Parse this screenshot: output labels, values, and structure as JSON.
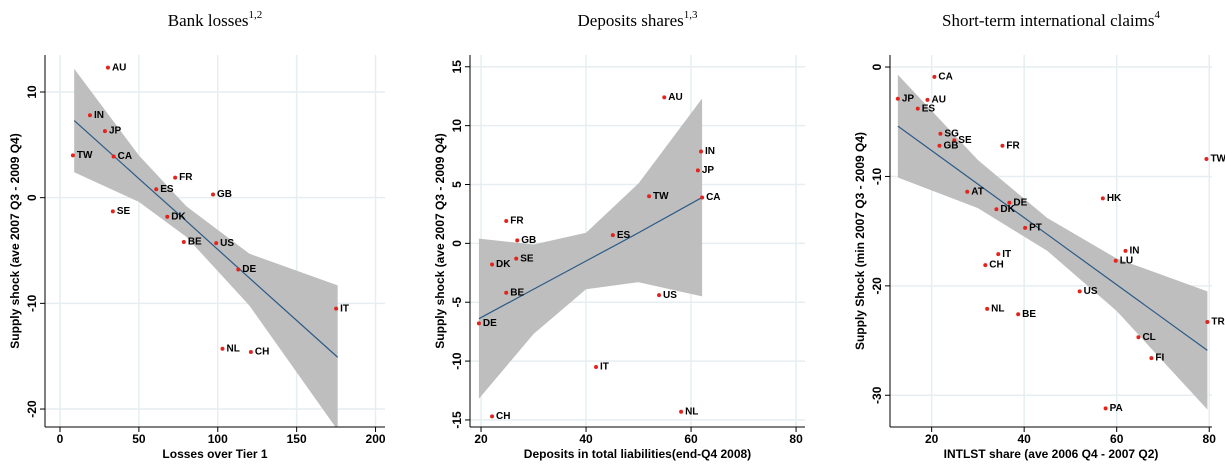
{
  "chart_data": [
    {
      "type": "scatter",
      "title": "Bank losses",
      "title_superscript": "1,2",
      "x_label": "Losses over Tier 1",
      "y_label": "Supply shock (ave 2007 Q3 - 2009 Q4)",
      "point_color": "#e3231c",
      "line_color": "#2c5a86",
      "band_color": "#bebebe",
      "grid": true,
      "xlim": [
        -9.5,
        206
      ],
      "ylim": [
        -21.7,
        13.5
      ],
      "xticks": [
        0,
        50,
        100,
        150,
        200
      ],
      "yticks": [
        -20,
        -10,
        0,
        10
      ],
      "labels": [
        "AU",
        "IN",
        "JP",
        "TW",
        "CA",
        "FR",
        "ES",
        "GB",
        "SE",
        "DK",
        "BE",
        "US",
        "DE",
        "IT",
        "NL",
        "CH"
      ],
      "x": [
        30.4,
        19,
        28.5,
        8.2,
        34,
        73,
        61,
        97,
        33.5,
        68,
        78.5,
        99,
        113,
        175,
        103,
        121
      ],
      "values": [
        12.3,
        7.8,
        6.3,
        4.0,
        3.9,
        1.9,
        0.8,
        0.3,
        -1.3,
        -1.8,
        -4.2,
        -4.3,
        -6.8,
        -10.5,
        -14.3,
        -14.6
      ],
      "fit": {
        "x": [
          9,
          50,
          80,
          120,
          176
        ],
        "values": [
          7.3,
          1.8,
          -2.2,
          -7.6,
          -15.1
        ],
        "upper": [
          12.2,
          4.0,
          -0.8,
          -5.3,
          -8.3
        ],
        "lower": [
          2.4,
          -0.4,
          -3.7,
          -10.2,
          -22.0
        ]
      }
    },
    {
      "type": "scatter",
      "title": "Deposits shares",
      "title_superscript": "1,3",
      "x_label": "Deposits in total liabilities(end-Q4 2008)",
      "y_label": "Supply shock (ave 2007 Q3 - 2009 Q4)",
      "point_color": "#e3231c",
      "line_color": "#2c5a86",
      "band_color": "#bebebe",
      "grid": true,
      "xlim": [
        17.9,
        81.7
      ],
      "ylim": [
        -15.6,
        16
      ],
      "xticks": [
        20,
        40,
        60,
        80
      ],
      "yticks": [
        -15,
        -10,
        -5,
        0,
        5,
        10,
        15
      ],
      "labels": [
        "AU",
        "IN",
        "JP",
        "CA",
        "TW",
        "FR",
        "GB",
        "ES",
        "SE",
        "DK",
        "BE",
        "US",
        "DE",
        "IT",
        "CH",
        "NL"
      ],
      "x": [
        54.9,
        61.9,
        61.3,
        62.1,
        52,
        24.8,
        26.9,
        45.1,
        26.7,
        22.1,
        24.8,
        53.9,
        19.6,
        41.9,
        22.1,
        58.1
      ],
      "values": [
        12.4,
        7.8,
        6.2,
        3.9,
        4.0,
        1.9,
        0.25,
        0.7,
        -1.3,
        -1.8,
        -4.2,
        -4.4,
        -6.8,
        -10.5,
        -14.7,
        -14.3
      ],
      "fit": {
        "x": [
          19.6,
          30,
          40,
          50,
          62.1
        ],
        "values": [
          -6.4,
          -3.9,
          -1.5,
          0.9,
          3.9
        ],
        "upper": [
          0.4,
          -0.1,
          0.9,
          5.1,
          12.3
        ],
        "lower": [
          -13.2,
          -7.7,
          -3.9,
          -3.3,
          -4.5
        ]
      }
    },
    {
      "type": "scatter",
      "title": "Short-term international claims",
      "title_superscript": "4",
      "x_label": "INTLST share (ave 2006 Q4 - 2007 Q2)",
      "y_label": "Supply Shock (min 2007 Q3 - 2009 Q4)",
      "point_color": "#e3231c",
      "line_color": "#2c5a86",
      "band_color": "#bebebe",
      "grid": true,
      "xlim": [
        11,
        80.6
      ],
      "ylim": [
        -32.9,
        1.1
      ],
      "xticks": [
        20,
        40,
        60,
        80
      ],
      "yticks": [
        -30,
        -20,
        -10,
        0
      ],
      "labels": [
        "CA",
        "JP",
        "AU",
        "ES",
        "SG",
        "SE",
        "GB",
        "FR",
        "TW",
        "AT",
        "DE",
        "HK",
        "DK",
        "PT",
        "IN",
        "IT",
        "CH",
        "LU",
        "US",
        "NL",
        "BE",
        "CL",
        "TR",
        "FI",
        "PA"
      ],
      "x": [
        20.6,
        12.7,
        19.1,
        17,
        21.9,
        24.9,
        21.7,
        35.3,
        79.4,
        27.7,
        36.8,
        57,
        34,
        40.2,
        61.9,
        34.4,
        31.6,
        59.8,
        52,
        32,
        38.7,
        64.7,
        79.6,
        67.5,
        57.6
      ],
      "values": [
        -0.9,
        -2.9,
        -3.0,
        -3.8,
        -6.1,
        -6.7,
        -7.2,
        -7.2,
        -8.4,
        -11.4,
        -12.4,
        -12.0,
        -13.0,
        -14.7,
        -16.8,
        -17.1,
        -18.1,
        -17.7,
        -20.5,
        -22.1,
        -22.6,
        -24.7,
        -23.3,
        -26.6,
        -31.2
      ],
      "fit": {
        "x": [
          12.7,
          30,
          45,
          60,
          79.6
        ],
        "values": [
          -5.4,
          -10.7,
          -15.3,
          -19.9,
          -25.9
        ],
        "upper": [
          -0.7,
          -8.5,
          -13.8,
          -17.5,
          -20.5
        ],
        "lower": [
          -10.1,
          -12.9,
          -16.8,
          -22.3,
          -31.3
        ]
      }
    }
  ]
}
